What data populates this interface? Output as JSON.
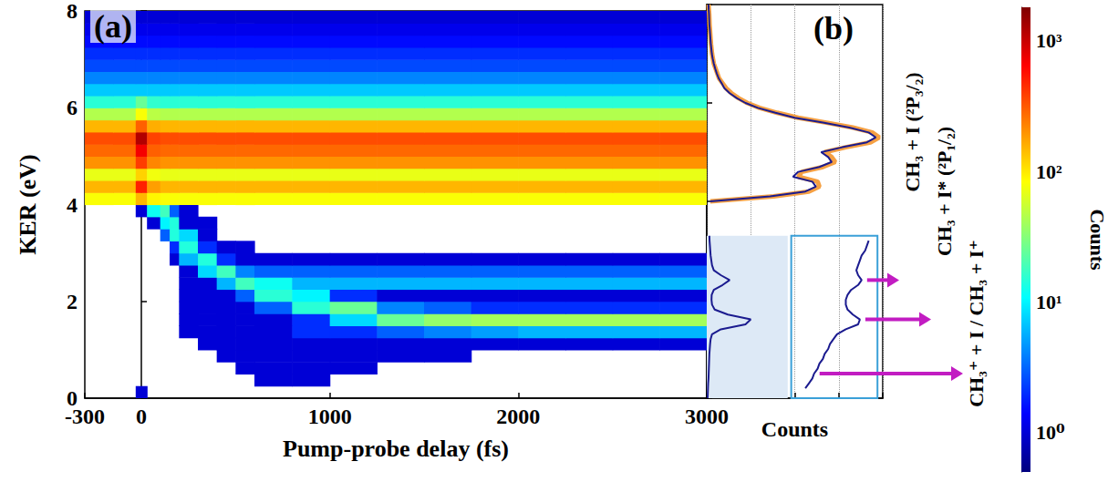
{
  "chart_data": [
    {
      "type": "heatmap",
      "title": "(a)",
      "x_label": "Pump-probe delay (fs)",
      "y_label": "KER (eV)",
      "xlim": [
        -300,
        3000
      ],
      "xticks": [
        -300,
        0,
        1000,
        2000,
        3000
      ],
      "ylim": [
        0,
        8
      ],
      "yticks": [
        0,
        2,
        4,
        6,
        8
      ],
      "grid": false,
      "x_edges": [
        -300,
        -150,
        -30,
        30,
        100,
        150,
        200,
        300,
        400,
        500,
        600,
        800,
        1000,
        1250,
        1500,
        1750,
        2000,
        2250,
        2500,
        2750,
        3000
      ],
      "y_edges": [
        0,
        0.25,
        0.5,
        0.75,
        1,
        1.25,
        1.5,
        1.75,
        2,
        2.25,
        2.5,
        2.75,
        3,
        3.25,
        3.5,
        3.75,
        4,
        4.25,
        4.5,
        4.75,
        5,
        5.25,
        5.5,
        5.75,
        6,
        6.25,
        6.5,
        6.75,
        7,
        7.25,
        7.5,
        7.75,
        8
      ],
      "cells": [
        [
          0,
          0,
          1,
          0,
          0,
          0,
          0,
          0,
          0,
          0,
          0,
          0,
          0,
          0,
          0,
          0,
          0,
          0,
          0,
          0
        ],
        [
          0,
          0,
          0,
          0,
          0,
          0,
          0,
          0,
          0,
          0,
          1,
          1,
          0,
          0,
          0,
          0,
          0,
          0,
          0,
          0
        ],
        [
          0,
          0,
          0,
          0,
          0,
          0,
          0,
          0,
          0,
          1,
          1,
          1,
          1,
          0,
          0,
          0,
          0,
          0,
          0,
          0
        ],
        [
          0,
          0,
          0,
          0,
          0,
          0,
          0,
          0,
          1,
          1,
          1,
          1,
          1,
          1,
          1,
          0,
          0,
          0,
          0,
          0
        ],
        [
          0,
          0,
          0,
          0,
          0,
          0,
          0,
          1,
          1,
          1,
          1,
          1,
          1,
          1,
          1,
          1,
          1,
          1,
          1,
          1
        ],
        [
          0,
          0,
          0,
          0,
          0,
          0,
          1,
          1,
          1,
          1,
          1,
          2,
          2,
          3,
          4,
          5,
          6,
          6,
          6,
          6
        ],
        [
          0,
          0,
          0,
          0,
          0,
          0,
          1,
          1,
          1,
          1,
          1,
          2,
          8,
          25,
          35,
          40,
          40,
          40,
          40,
          40
        ],
        [
          0,
          0,
          0,
          0,
          0,
          0,
          1,
          1,
          1,
          1,
          3,
          15,
          25,
          4,
          3,
          2,
          2,
          2,
          2,
          2
        ],
        [
          0,
          0,
          0,
          0,
          0,
          0,
          1,
          1,
          1,
          3,
          15,
          10,
          2,
          1,
          1,
          1,
          1,
          1,
          1,
          1
        ],
        [
          0,
          0,
          0,
          0,
          0,
          0,
          1,
          1,
          6,
          18,
          12,
          6,
          6,
          6,
          6,
          6,
          6,
          6,
          6,
          6
        ],
        [
          0,
          0,
          0,
          0,
          0,
          0,
          1,
          8,
          18,
          4,
          3,
          3,
          3,
          3,
          3,
          3,
          3,
          3,
          3,
          3
        ],
        [
          0,
          0,
          0,
          0,
          0,
          1,
          6,
          14,
          2,
          1,
          1,
          1,
          1,
          1,
          1,
          1,
          1,
          1,
          1,
          1
        ],
        [
          0,
          0,
          0,
          0,
          0,
          2,
          14,
          2,
          1,
          1,
          0,
          0,
          0,
          0,
          0,
          0,
          0,
          0,
          0,
          0
        ],
        [
          0,
          0,
          0,
          0,
          3,
          14,
          8,
          1,
          0,
          0,
          0,
          0,
          0,
          0,
          0,
          0,
          0,
          0,
          0,
          0
        ],
        [
          0,
          0,
          0,
          1,
          10,
          14,
          1,
          1,
          0,
          0,
          0,
          0,
          0,
          0,
          0,
          0,
          0,
          0,
          0,
          0
        ],
        [
          0,
          0,
          1,
          12,
          18,
          3,
          1,
          0,
          0,
          0,
          0,
          0,
          0,
          0,
          0,
          0,
          0,
          0,
          0,
          0
        ],
        [
          80,
          80,
          150,
          90,
          80,
          80,
          80,
          80,
          80,
          80,
          80,
          80,
          80,
          80,
          80,
          80,
          80,
          80,
          80,
          80
        ],
        [
          150,
          150,
          500,
          180,
          150,
          150,
          150,
          150,
          150,
          150,
          150,
          150,
          150,
          150,
          150,
          150,
          150,
          150,
          150,
          150
        ],
        [
          70,
          70,
          120,
          75,
          70,
          70,
          70,
          70,
          70,
          70,
          70,
          70,
          70,
          70,
          70,
          70,
          70,
          70,
          70,
          70
        ],
        [
          200,
          200,
          400,
          220,
          200,
          200,
          200,
          200,
          200,
          200,
          200,
          200,
          200,
          200,
          200,
          200,
          200,
          200,
          200,
          200
        ],
        [
          280,
          280,
          700,
          300,
          280,
          280,
          280,
          280,
          280,
          280,
          280,
          280,
          280,
          280,
          280,
          280,
          280,
          280,
          280,
          280
        ],
        [
          350,
          350,
          1200,
          380,
          350,
          350,
          350,
          350,
          350,
          350,
          350,
          350,
          350,
          350,
          350,
          350,
          350,
          350,
          350,
          350
        ],
        [
          150,
          150,
          300,
          160,
          150,
          150,
          150,
          150,
          150,
          150,
          150,
          150,
          150,
          150,
          150,
          150,
          150,
          150,
          150,
          150
        ],
        [
          45,
          45,
          80,
          48,
          45,
          45,
          45,
          45,
          45,
          45,
          45,
          45,
          45,
          45,
          45,
          45,
          45,
          45,
          45,
          45
        ],
        [
          15,
          15,
          25,
          16,
          15,
          15,
          15,
          15,
          15,
          15,
          15,
          15,
          15,
          15,
          15,
          15,
          15,
          15,
          15,
          15
        ],
        [
          7,
          7,
          7,
          7,
          7,
          7,
          7,
          7,
          7,
          7,
          7,
          7,
          7,
          7,
          7,
          7,
          7,
          7,
          7,
          7
        ],
        [
          4,
          4,
          4,
          4,
          4,
          4,
          4,
          4,
          4,
          4,
          4,
          4,
          4,
          4,
          4,
          4,
          4,
          4,
          4,
          4
        ],
        [
          2.5,
          2.5,
          2.5,
          2.5,
          2.5,
          2.5,
          2.5,
          2.5,
          2.5,
          2.5,
          2.5,
          2.5,
          2.5,
          2.5,
          2.5,
          2.5,
          2.5,
          2.5,
          2.5,
          2.5
        ],
        [
          2,
          2,
          2,
          2,
          2,
          2,
          2,
          2,
          2,
          2,
          2,
          2,
          2,
          2,
          2,
          2,
          2,
          2,
          2,
          2
        ],
        [
          1.5,
          1.5,
          1.5,
          1.5,
          1.5,
          1.5,
          1.5,
          1.5,
          1.5,
          1.5,
          1.5,
          1.5,
          1.5,
          1.5,
          1.5,
          1.5,
          1.5,
          1.5,
          1.5,
          1.5
        ],
        [
          1.2,
          1.2,
          1.2,
          1.2,
          1.2,
          1.2,
          1.2,
          1.2,
          1.2,
          1.2,
          1.2,
          1.2,
          1.2,
          1.2,
          1.2,
          1.2,
          1.2,
          1.2,
          1.2,
          1.2
        ],
        [
          1,
          1,
          1,
          1,
          1,
          1,
          1,
          1,
          1,
          1,
          1,
          1,
          1,
          1,
          1,
          1,
          1,
          1,
          1,
          1
        ]
      ],
      "color_label": "Counts",
      "color_range": [
        0.5,
        1800
      ],
      "color_ticks": [
        {
          "value": 1,
          "label": "10⁰"
        },
        {
          "value": 10,
          "label": "10¹"
        },
        {
          "value": 100,
          "label": "10²"
        },
        {
          "value": 1000,
          "label": "10³"
        }
      ]
    },
    {
      "type": "line",
      "title": "(b)",
      "x_label": "Counts",
      "xlim": [
        0,
        1
      ],
      "xticks": [
        0,
        0.25,
        0.5,
        0.75,
        1
      ],
      "ylim": [
        0,
        8
      ],
      "yticks": [
        0,
        2,
        4,
        6,
        8
      ],
      "grid": true,
      "tick_labels": false,
      "y": [
        0,
        0.1,
        0.2,
        0.3,
        0.4,
        0.5,
        0.6,
        0.7,
        0.8,
        0.9,
        1,
        1.1,
        1.2,
        1.3,
        1.4,
        1.5,
        1.6,
        1.7,
        1.8,
        1.9,
        2,
        2.1,
        2.2,
        2.3,
        2.4,
        2.5,
        2.6,
        2.7,
        2.8,
        2.9,
        3,
        3.1,
        3.2,
        3.3,
        3.4,
        3.5,
        3.6,
        3.7,
        3.8,
        3.9,
        4,
        4.1,
        4.2,
        4.3,
        4.4,
        4.5,
        4.6,
        4.7,
        4.8,
        4.9,
        5,
        5.1,
        5.2,
        5.3,
        5.4,
        5.5,
        5.6,
        5.7,
        5.8,
        5.9,
        6,
        6.1,
        6.2,
        6.3,
        6.4,
        6.5,
        6.6,
        6.7,
        6.8,
        6.9,
        7,
        7.1,
        7.2,
        7.3,
        7.4,
        7.5,
        7.6,
        7.7,
        7.8,
        7.9,
        8
      ],
      "series": [
        {
          "color": "#f5a043",
          "values": [
            null,
            null,
            null,
            null,
            null,
            null,
            null,
            null,
            null,
            null,
            null,
            null,
            null,
            null,
            null,
            null,
            null,
            null,
            null,
            null,
            null,
            null,
            null,
            null,
            null,
            null,
            null,
            null,
            null,
            null,
            null,
            null,
            null,
            null,
            null,
            null,
            null,
            null,
            null,
            null,
            0.02,
            0.38,
            0.58,
            0.64,
            0.63,
            0.52,
            0.54,
            0.66,
            0.73,
            0.71,
            0.67,
            0.79,
            0.93,
            0.98,
            0.94,
            0.83,
            0.68,
            0.52,
            0.4,
            0.3,
            0.23,
            0.18,
            0.14,
            0.11,
            0.09,
            0.07,
            0.06,
            0.05,
            0.04,
            0.035,
            0.03,
            0.027,
            0.024,
            0.022,
            0.02,
            0.018,
            0.016,
            0.015,
            0.014,
            0.012,
            0.01
          ]
        },
        {
          "color": "#1b1b8f",
          "values": [
            null,
            null,
            null,
            null,
            null,
            null,
            null,
            null,
            null,
            null,
            null,
            null,
            null,
            null,
            null,
            null,
            null,
            null,
            null,
            null,
            null,
            null,
            null,
            null,
            null,
            null,
            null,
            null,
            null,
            null,
            null,
            null,
            null,
            null,
            null,
            null,
            null,
            null,
            null,
            null,
            0.02,
            0.36,
            0.56,
            0.62,
            0.6,
            0.49,
            0.52,
            0.64,
            0.71,
            0.69,
            0.65,
            0.77,
            0.91,
            0.96,
            0.92,
            0.81,
            0.66,
            0.5,
            0.39,
            0.29,
            0.22,
            0.17,
            0.13,
            0.1,
            0.085,
            0.068,
            0.057,
            0.048,
            0.04,
            0.034,
            0.029,
            0.026,
            0.023,
            0.021,
            0.019,
            0.017,
            0.015,
            0.014,
            0.013,
            0.011,
            0.01
          ]
        },
        {
          "color": "#1b1b8f",
          "values": [
            0.005,
            0.006,
            0.007,
            0.008,
            0.01,
            0.011,
            0.012,
            0.013,
            0.014,
            0.015,
            0.017,
            0.019,
            0.022,
            0.03,
            0.08,
            0.22,
            0.25,
            0.12,
            0.045,
            0.03,
            0.027,
            0.028,
            0.04,
            0.09,
            0.13,
            0.08,
            0.04,
            0.03,
            0.026,
            0.022,
            0.02,
            0.018,
            0.016,
            0.015,
            null,
            null,
            null,
            null,
            null,
            null,
            null,
            null,
            null,
            null,
            null,
            null,
            null,
            null,
            null,
            null,
            null,
            null,
            null,
            null,
            null,
            null,
            null,
            null,
            null,
            null,
            null,
            null,
            null,
            null,
            null,
            null,
            null,
            null,
            null,
            null,
            null,
            null,
            null,
            null,
            null,
            null,
            null,
            null,
            null,
            null,
            null
          ]
        },
        {
          "color": "#1b1b8f",
          "values": [
            null,
            null,
            0.56,
            0.58,
            0.6,
            0.61,
            0.63,
            0.64,
            0.66,
            0.67,
            0.69,
            0.7,
            0.72,
            0.74,
            0.79,
            0.86,
            0.87,
            0.83,
            0.8,
            0.79,
            0.79,
            0.8,
            0.82,
            0.86,
            0.88,
            0.86,
            0.85,
            0.86,
            0.87,
            0.88,
            0.9,
            0.91,
            0.92,
            null,
            null,
            null,
            null,
            null,
            null,
            null,
            null,
            null,
            null,
            null,
            null,
            null,
            null,
            null,
            null,
            null,
            null,
            null,
            null,
            null,
            null,
            null,
            null,
            null,
            null,
            null,
            null,
            null,
            null,
            null,
            null,
            null,
            null,
            null,
            null,
            null,
            null,
            null,
            null,
            null,
            null,
            null,
            null,
            null,
            null,
            null,
            null
          ]
        }
      ],
      "annotations": [
        "CH₃ + I (²P₃/₂)",
        "CH₃ + I* (²P₁/₂)",
        "CH₃⁺ + I / CH₃ + I⁺"
      ]
    }
  ]
}
